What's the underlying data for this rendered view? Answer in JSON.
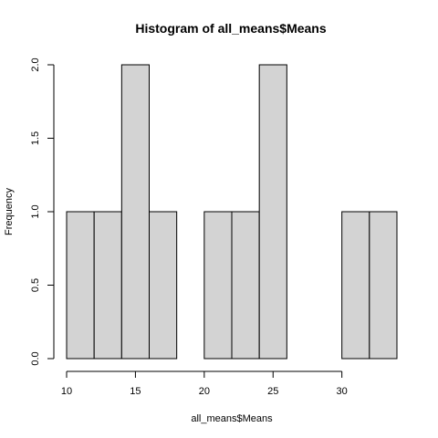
{
  "chart_data": {
    "type": "bar",
    "title": "Histogram of all_means$Means",
    "xlabel": "all_means$Means",
    "ylabel": "Frequency",
    "bins": [
      {
        "start": 10,
        "end": 12,
        "count": 1
      },
      {
        "start": 12,
        "end": 14,
        "count": 1
      },
      {
        "start": 14,
        "end": 16,
        "count": 2
      },
      {
        "start": 16,
        "end": 18,
        "count": 1
      },
      {
        "start": 18,
        "end": 20,
        "count": 0
      },
      {
        "start": 20,
        "end": 22,
        "count": 1
      },
      {
        "start": 22,
        "end": 24,
        "count": 1
      },
      {
        "start": 24,
        "end": 26,
        "count": 2
      },
      {
        "start": 26,
        "end": 28,
        "count": 0
      },
      {
        "start": 28,
        "end": 30,
        "count": 0
      },
      {
        "start": 30,
        "end": 32,
        "count": 1
      },
      {
        "start": 32,
        "end": 34,
        "count": 1
      }
    ],
    "xlim": [
      10,
      34
    ],
    "ylim": [
      0,
      2
    ],
    "x_ticks": [
      10,
      15,
      20,
      25,
      30
    ],
    "x_tick_labels": [
      "10",
      "15",
      "20",
      "25",
      "30"
    ],
    "y_ticks": [
      0,
      0.5,
      1,
      1.5,
      2
    ],
    "y_tick_labels": [
      "0.0",
      "0.5",
      "1.0",
      "1.5",
      "2.0"
    ],
    "bar_color": "#d3d3d3",
    "grid": false,
    "legend": "none"
  }
}
